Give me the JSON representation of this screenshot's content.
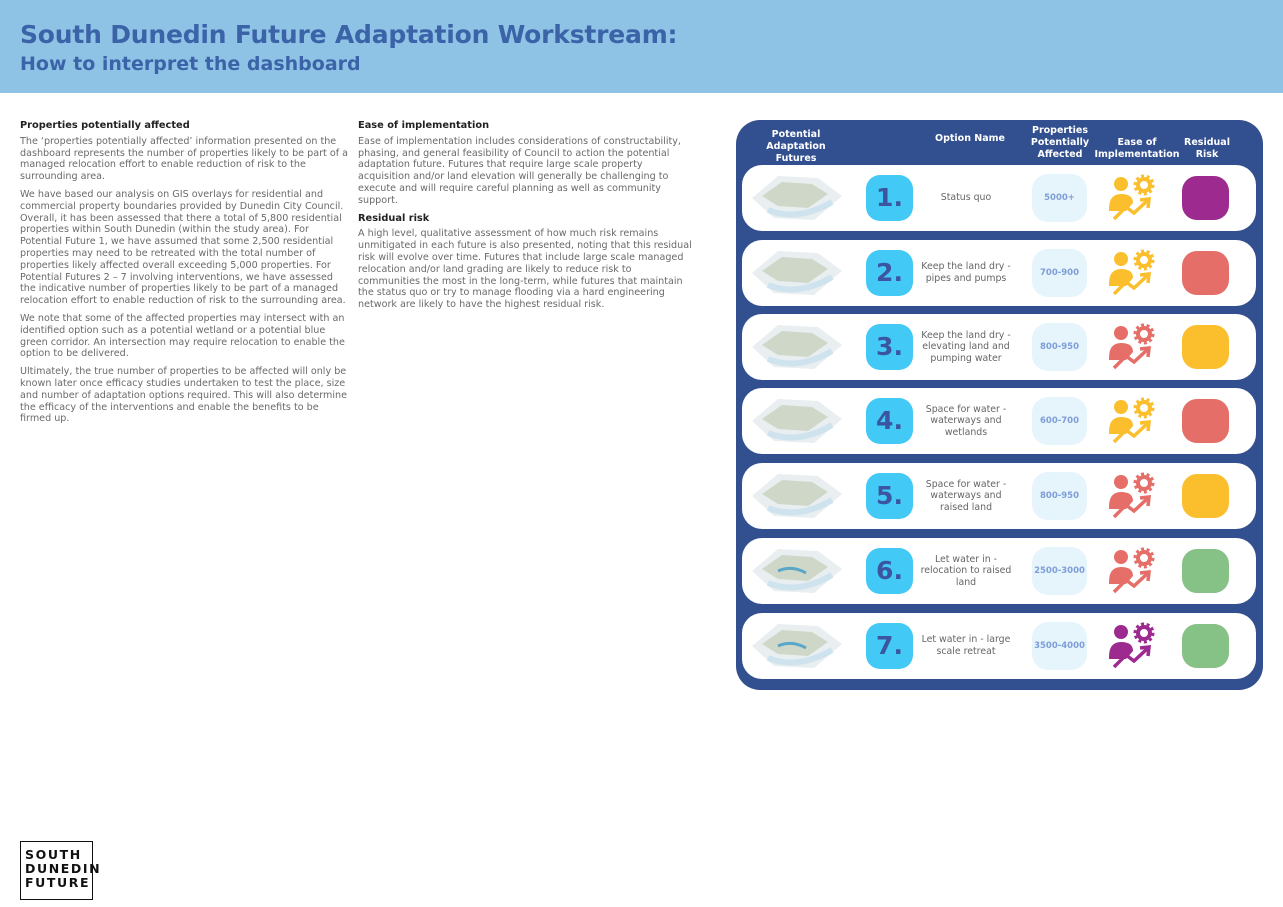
{
  "header": {
    "title": "South Dunedin Future Adaptation Workstream:",
    "subtitle": "How to interpret the dashboard",
    "colors": {
      "band": "#8fc3e6",
      "title": "#3b63a8"
    }
  },
  "properties_section": {
    "heading": "Properties potentially affected",
    "paragraphs": [
      "The ‘properties potentially affected’ information presented on the dashboard represents the number of properties likely to be part of a managed relocation effort to enable reduction of risk to the surrounding area.",
      "We have based our analysis on GIS overlays for residential and commercial property boundaries provided by Dunedin City Council. Overall, it has been assessed that there a total of 5,800 residential properties within South Dunedin (within the study area). For Potential Future 1, we have assumed that some 2,500 residential properties may need to be retreated with the total number of properties likely affected overall exceeding 5,000 properties. For Potential Futures 2 – 7 involving interventions, we have assessed the indicative number of properties likely to be part of a managed relocation effort to enable reduction of risk to the surrounding area.",
      "We note that some of the affected properties may intersect with an identified option such as a potential wetland or a potential blue green corridor. An intersection may require relocation to enable the option to be delivered.",
      "Ultimately, the true number of properties to be affected will only be known later once efficacy studies undertaken to test the place, size and number of adaptation options required. This will also determine the efficacy of the interventions and enable the benefits to be firmed up."
    ]
  },
  "ease_section": {
    "heading": "Ease of implementation",
    "text": "Ease of implementation includes considerations of constructability, phasing, and general feasibility of Council to action the potential adaptation future.  Futures that require large scale property acquisition and/or land elevation will generally be challenging to execute and will require careful planning as well as community support."
  },
  "risk_section": {
    "heading": "Residual risk",
    "text": "A high level, qualitative assessment of how much risk remains unmitigated in each future is also presented, noting that this residual risk will evolve over time.  Futures that include large scale managed relocation and/or land grading are likely to reduce risk to communities the most in the long-term, while futures that maintain the status quo or try to manage flooding via a hard engineering network are likely to have the highest residual risk."
  },
  "dashboard": {
    "columns": {
      "futures": "Potential Adaptation Futures",
      "name": "Option Name",
      "properties": "Properties Potentially Affected",
      "ease": "Ease of Implementation",
      "risk": "Residual Risk"
    },
    "colors": {
      "panel": "#324f8f",
      "yellow": "#fbbf2e",
      "red": "#e56f68",
      "purple": "#9c2a8f",
      "green": "#86c185"
    },
    "rows": [
      {
        "number": "1.",
        "name": "Status quo",
        "properties": "5000+",
        "ease": "yellow",
        "risk": "purple"
      },
      {
        "number": "2.",
        "name": "Keep the land dry - pipes and pumps",
        "properties": "700-900",
        "ease": "yellow",
        "risk": "red"
      },
      {
        "number": "3.",
        "name": "Keep the land dry - elevating land and pumping water",
        "properties": "800-950",
        "ease": "red",
        "risk": "yellow"
      },
      {
        "number": "4.",
        "name": "Space for water - waterways and wetlands",
        "properties": "600-700",
        "ease": "yellow",
        "risk": "red"
      },
      {
        "number": "5.",
        "name": "Space for water - waterways and raised land",
        "properties": "800-950",
        "ease": "red",
        "risk": "yellow"
      },
      {
        "number": "6.",
        "name": "Let water in - relocation to raised land",
        "properties": "2500-3000",
        "ease": "red",
        "risk": "green"
      },
      {
        "number": "7.",
        "name": "Let water in - large scale retreat",
        "properties": "3500-4000",
        "ease": "purple",
        "risk": "green"
      }
    ]
  },
  "logo": {
    "lines": [
      "SOUTH",
      "DUNEDIN",
      "FUTURE"
    ]
  }
}
